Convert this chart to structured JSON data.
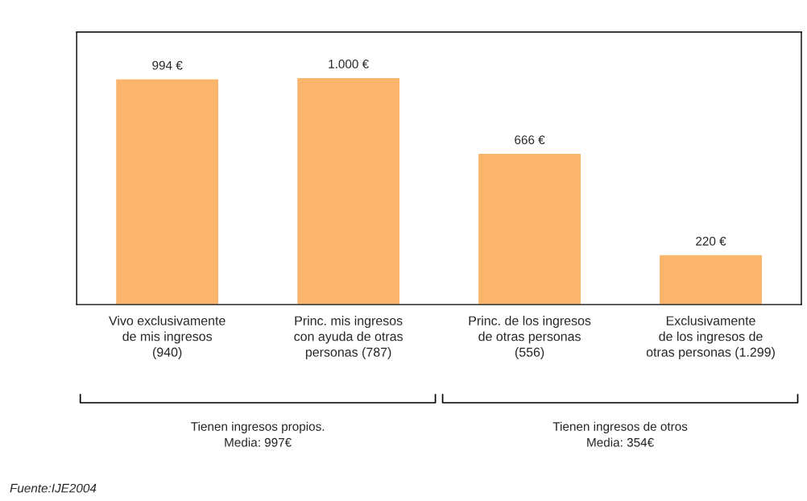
{
  "chart_data": {
    "type": "bar",
    "categories": [
      "Vivo exclusivamente\nde mis ingresos\n(940)",
      "Princ. mis ingresos\ncon ayuda de otras\npersonas (787)",
      "Princ. de los ingresos\nde otras personas\n(556)",
      "Exclusivamente\nde los ingresos de\notras personas (1.299)"
    ],
    "values": [
      994,
      1000,
      666,
      220
    ],
    "value_labels": [
      "994 €",
      "1.000 €",
      "666 €",
      "220 €"
    ],
    "color": "#fbb46c",
    "tick_labels": "x",
    "grid": false,
    "annotations": [
      "Tienen ingresos propios.\nMedia: 997€",
      "Tienen ingresos de otros\nMedia: 354€",
      "Fuente:IJE2004"
    ]
  }
}
